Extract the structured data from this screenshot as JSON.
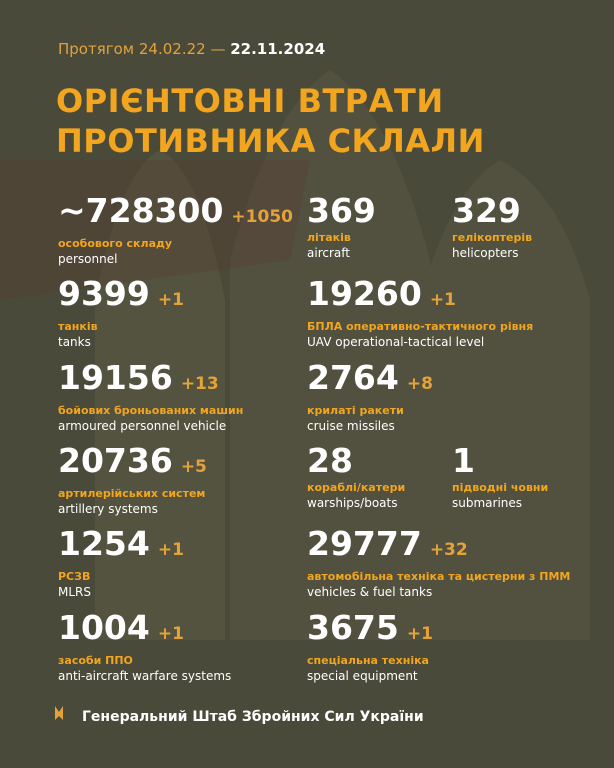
{
  "header": {
    "prefix": "Протягом 24.02.22 —",
    "date": "22.11.2024"
  },
  "title": [
    "ОРІЄНТОВНІ ВТРАТИ",
    "ПРОТИВНИКА СКЛАЛИ"
  ],
  "items": [
    {
      "value": "~728300",
      "delta": "+1050",
      "label_uk": "особового складу",
      "label_en": "personnel"
    },
    {
      "value": "369",
      "label_uk": "літаків",
      "label_en": "aircraft"
    },
    {
      "value": "329",
      "label_uk": "гелікоптерів",
      "label_en": "helicopters"
    },
    {
      "value": "9399",
      "delta": "+1",
      "label_uk": "танків",
      "label_en": "tanks"
    },
    {
      "value": "19260",
      "delta": "+1",
      "label_uk": "БПЛА оперативно-тактичного рівня",
      "label_en": "UAV operational-tactical level"
    },
    {
      "value": "19156",
      "delta": "+13",
      "label_uk": "бойових броньованих машин",
      "label_en": "armoured personnel vehicle"
    },
    {
      "value": "2764",
      "delta": "+8",
      "label_uk": "крилаті ракети",
      "label_en": "cruise missiles"
    },
    {
      "value": "20736",
      "delta": "+5",
      "label_uk": "артилерійських систем",
      "label_en": "artillery systems"
    },
    {
      "value": "28",
      "label_uk": "кораблі/катери",
      "label_en": "warships/boats"
    },
    {
      "value": "1",
      "label_uk": "підводні човни",
      "label_en": "submarines"
    },
    {
      "value": "1254",
      "delta": "+1",
      "label_uk": "РСЗВ",
      "label_en": "MLRS"
    },
    {
      "value": "29777",
      "delta": "+32",
      "label_uk": "автомобільна техніка та цистерни з ПММ",
      "label_en": "vehicles & fuel tanks"
    },
    {
      "value": "1004",
      "delta": "+1",
      "label_uk": "засоби ППО",
      "label_en": "anti-aircraft warfare systems"
    },
    {
      "value": "3675",
      "delta": "+1",
      "label_uk": "спеціальна техніка",
      "label_en": "special equipment"
    }
  ],
  "footer": "Генеральний Штаб Збройних Сил України"
}
